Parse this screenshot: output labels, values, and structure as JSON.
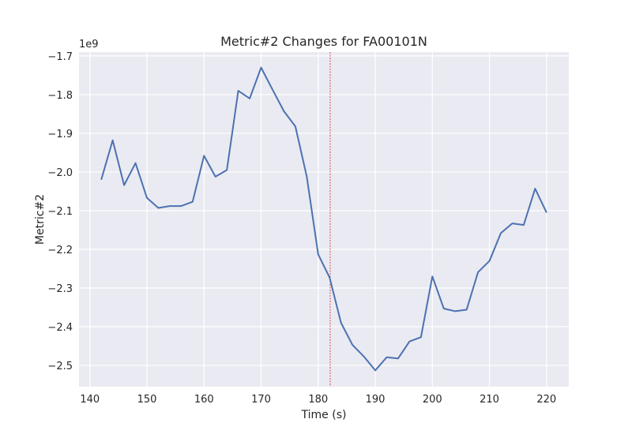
{
  "chart_data": {
    "type": "line",
    "title": "Metric#2 Changes for FA00101N",
    "xlabel": "Time (s)",
    "ylabel": "Metric#2",
    "y_offset_label": "1e9",
    "xlim": [
      138.1,
      223.9
    ],
    "ylim": [
      -2.555,
      -1.69
    ],
    "x_ticks": [
      140,
      150,
      160,
      170,
      180,
      190,
      200,
      210,
      220
    ],
    "x_tick_labels": [
      "140",
      "150",
      "160",
      "170",
      "180",
      "190",
      "200",
      "210",
      "220"
    ],
    "y_ticks": [
      -1.7,
      -1.8,
      -1.9,
      -2.0,
      -2.1,
      -2.2,
      -2.3,
      -2.4,
      -2.5
    ],
    "y_tick_labels": [
      "−1.7",
      "−1.8",
      "−1.9",
      "−2.0",
      "−2.1",
      "−2.2",
      "−2.3",
      "−2.4",
      "−2.5"
    ],
    "grid": true,
    "vline_x": 182.1,
    "colors": {
      "background": "#eaeaf2",
      "grid": "#ffffff",
      "line": "#4c72b0",
      "vline": "#d62728"
    },
    "series": [
      {
        "x": [
          142,
          144,
          146,
          148,
          150,
          152,
          154,
          156,
          158,
          160,
          162,
          164,
          166,
          168,
          170,
          172,
          174,
          176,
          178,
          180,
          182,
          184,
          186,
          188,
          190,
          192,
          194,
          196,
          198,
          200,
          202,
          204,
          206,
          208,
          210,
          212,
          214,
          216,
          218,
          220
        ],
        "y": [
          -2.02,
          -1.918,
          -2.034,
          -1.977,
          -2.067,
          -2.093,
          -2.088,
          -2.088,
          -2.077,
          -1.958,
          -2.012,
          -1.995,
          -1.79,
          -1.81,
          -1.73,
          -1.787,
          -1.843,
          -1.882,
          -2.012,
          -2.213,
          -2.273,
          -2.39,
          -2.447,
          -2.477,
          -2.513,
          -2.479,
          -2.482,
          -2.438,
          -2.427,
          -2.27,
          -2.353,
          -2.36,
          -2.356,
          -2.259,
          -2.23,
          -2.158,
          -2.133,
          -2.137,
          -2.043,
          -2.105
        ]
      }
    ]
  }
}
